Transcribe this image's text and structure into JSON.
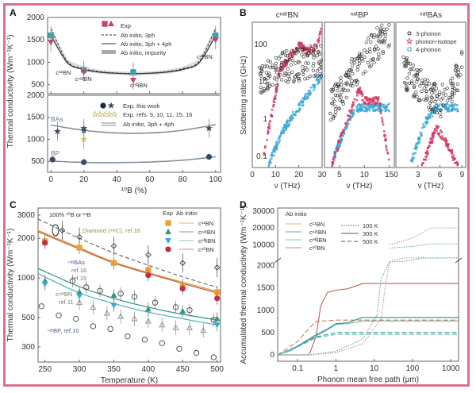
{
  "figure": {
    "frame_color": "#d9728a"
  },
  "chart_data": [
    {
      "panel": "A",
      "type": "line",
      "subplots": [
        {
          "name": "BN",
          "ylim": [
            300,
            2000
          ],
          "yticks": [
            500,
            1000,
            1500,
            2000
          ],
          "x": [
            0,
            10,
            20,
            30,
            40,
            50,
            60,
            70,
            80,
            90,
            100
          ],
          "series": [
            {
              "name": "Ab initio, 3ph",
              "style": "dashed",
              "values": [
                1750,
                1020,
                860,
                790,
                760,
                750,
                760,
                790,
                860,
                1020,
                1750
              ]
            },
            {
              "name": "Ab initio, 3ph + 4ph",
              "style": "solid",
              "values": [
                1600,
                990,
                840,
                780,
                755,
                745,
                755,
                780,
                840,
                990,
                1600
              ]
            }
          ],
          "exp_points": [
            {
              "x": 0,
              "y": 1600,
              "label": "c11BN"
            },
            {
              "x": 0,
              "y": 1450
            },
            {
              "x": 20,
              "y": 830,
              "label": "cnatBN"
            },
            {
              "x": 20,
              "y": 780
            },
            {
              "x": 50,
              "y": 780,
              "label": "ceqBN"
            },
            {
              "x": 50,
              "y": 600
            },
            {
              "x": 100,
              "y": 1600,
              "label": "c10BN"
            },
            {
              "x": 100,
              "y": 1500
            }
          ],
          "annotations": [
            "c¹¹BN",
            "cⁿᵃᵗBN",
            "cᵉᑫBN",
            "c¹⁰BN"
          ],
          "legend": [
            "Exp",
            "Ab initio, 3ph",
            "Ab initio, 3ph + 4ph",
            "Ab initio, impurity"
          ]
        },
        {
          "name": "BAs/BP",
          "ylim": [
            250,
            2000
          ],
          "yticks": [
            500,
            1000,
            1500,
            2000
          ],
          "xlim": [
            0,
            100
          ],
          "xticks": [
            0,
            20,
            40,
            60,
            80,
            100
          ],
          "xlabel": "¹⁰B (%)",
          "series": [
            {
              "name": "BAs ab initio",
              "x": [
                0,
                20,
                40,
                60,
                80,
                100
              ],
              "values": [
                1320,
                1200,
                1140,
                1140,
                1200,
                1330
              ]
            },
            {
              "name": "BP ab initio",
              "x": [
                0,
                20,
                40,
                60,
                80,
                100
              ],
              "values": [
                500,
                470,
                465,
                480,
                520,
                600
              ]
            }
          ],
          "exp_points": [
            {
              "series": "BAs",
              "x": 4,
              "y": 1180
            },
            {
              "series": "BAs",
              "x": 20,
              "y": 1250
            },
            {
              "series": "BAs",
              "x": 20,
              "y": 1200
            },
            {
              "series": "BAs",
              "x": 20,
              "y": 1000,
              "ref": true
            },
            {
              "series": "BAs",
              "x": 96,
              "y": 1250
            },
            {
              "series": "BP",
              "x": 1,
              "y": 540
            },
            {
              "series": "BP",
              "x": 20,
              "y": 480
            },
            {
              "series": "BP",
              "x": 96,
              "y": 600
            }
          ],
          "annotations": [
            "BAs",
            "BP"
          ],
          "legend": [
            "Exp. this work",
            "Exp. refs. 9, 10, 11, 15, 16",
            "Ab initio, 3ph + 4ph"
          ]
        }
      ],
      "ylabel": "Thermal conductivity (Wm⁻¹K⁻¹)"
    },
    {
      "panel": "B",
      "type": "scatter",
      "ylabel": "Scattering rates (GHz)",
      "yscale": "log",
      "ylim": [
        0.05,
        400
      ],
      "yticks": [
        "0.1",
        "1",
        "10",
        "100"
      ],
      "legend": [
        "3-phonon",
        "phonon-isotope",
        "4-phonon"
      ],
      "subplots": [
        {
          "title": "cⁿᵃᵗBN",
          "xlim": [
            0,
            30
          ],
          "xticks": [
            0,
            10,
            20,
            30
          ],
          "xlabel": "ν (THz)"
        },
        {
          "title": "ⁿᵃᵗBP",
          "xlim": [
            2,
            16
          ],
          "xticks": [
            5,
            10,
            15
          ],
          "xlabel": "ν (THz)"
        },
        {
          "title": "ⁿᵃᵗBAs",
          "xlim": [
            0,
            9.5
          ],
          "xticks": [
            0,
            3,
            6,
            9
          ],
          "xlabel": "ν (THz)"
        }
      ]
    },
    {
      "panel": "C",
      "type": "line",
      "xlabel": "Temperature (K)",
      "ylabel": "Thermal conductivity (Wm⁻¹K⁻¹)",
      "yscale": "log",
      "xlim": [
        240,
        505
      ],
      "ylim": [
        230,
        3400
      ],
      "xticks": [
        250,
        300,
        350,
        400,
        450,
        500
      ],
      "yticks": [
        300,
        500,
        1000,
        2000,
        3000
      ],
      "x": [
        240,
        300,
        350,
        400,
        450,
        500
      ],
      "series": [
        {
          "name": "c¹¹BN",
          "color": "#e8963a",
          "values": [
            2300,
            1700,
            1320,
            1100,
            930,
            790
          ]
        },
        {
          "name": "c¹⁰BN",
          "color": "#b5523b",
          "values": [
            2250,
            1660,
            1300,
            1080,
            910,
            770
          ]
        },
        {
          "name": "cⁿᵃᵗBN",
          "color": "#2f8e86",
          "values": [
            1180,
            860,
            700,
            600,
            530,
            480
          ]
        },
        {
          "name": "cᵉᑫBN",
          "color": "#4ab0b8",
          "values": [
            1080,
            770,
            640,
            550,
            490,
            440
          ]
        },
        {
          "name": "Diamond",
          "color": "#555555",
          "style": "dashed",
          "values": [
            2800,
            2000,
            1550,
            1250,
            1020,
            850
          ]
        }
      ],
      "exp_points": {
        "c11BN": [
          [
            250,
            1900
          ],
          [
            300,
            1700
          ],
          [
            350,
            1300
          ],
          [
            400,
            1150
          ],
          [
            450,
            880
          ],
          [
            500,
            780
          ]
        ],
        "cnatBN": [
          [
            250,
            950
          ],
          [
            300,
            780
          ],
          [
            350,
            740
          ],
          [
            400,
            580
          ],
          [
            450,
            560
          ],
          [
            500,
            490
          ]
        ],
        "ceqBN": [
          [
            250,
            900
          ],
          [
            300,
            730
          ],
          [
            350,
            620
          ],
          [
            500,
            440
          ]
        ],
        "c10BN": [
          [
            250,
            1850
          ],
          [
            400,
            1050
          ],
          [
            450,
            830
          ],
          [
            500,
            700
          ]
        ],
        "diamond_ref": [
          [
            275,
            2300
          ],
          [
            300,
            2050
          ],
          [
            350,
            1750
          ],
          [
            400,
            1500
          ],
          [
            450,
            1300
          ],
          [
            500,
            1200
          ]
        ],
        "BP_ref": [
          [
            245,
            610
          ],
          [
            270,
            520
          ],
          [
            295,
            490
          ],
          [
            320,
            430
          ],
          [
            345,
            410
          ],
          [
            370,
            360
          ],
          [
            395,
            340
          ],
          [
            420,
            320
          ],
          [
            445,
            290
          ],
          [
            470,
            270
          ],
          [
            495,
            250
          ]
        ]
      },
      "annotations": [
        "100% ¹⁰B or ¹¹B",
        "Diamond (ⁿᵃᵗC), ref.16",
        "ⁿᵃᵗBAs",
        "ref.16",
        "ref.15",
        "cⁿᵃᵗBN",
        "ref.11",
        "ⁿᵃᵗBP, ref.10"
      ],
      "legend": {
        "headers": [
          "Exp",
          "Ab initio"
        ],
        "entries": [
          "c¹¹BN",
          "cⁿᵃᵗBN",
          "cᵉᑫBN",
          "c¹⁰BN"
        ]
      }
    },
    {
      "panel": "D",
      "type": "line",
      "xlabel": "Phonon mean free path (μm)",
      "ylabel": "Accumulated thermal conductivity (Wm⁻¹K⁻¹)",
      "xscale": "log",
      "xlim": [
        0.03,
        1600
      ],
      "xticks": [
        "0.1",
        "1",
        "10",
        "100",
        "1000"
      ],
      "yticks_lower": [
        0,
        500,
        1000,
        1500,
        2000
      ],
      "yticks_upper": [
        10000,
        20000,
        30000
      ],
      "legend": {
        "title": "Ab initio",
        "materials": [
          "c¹¹BN",
          "cⁿᵃᵗBN",
          "cᵉᑫBN",
          "c¹⁰BN"
        ],
        "temperatures": [
          "100 K",
          "300 K",
          "500 K"
        ]
      },
      "series": [
        {
          "name": "c¹¹BN 300 K",
          "color": "#c0605a",
          "x": [
            0.03,
            0.2,
            0.3,
            0.4,
            0.6,
            1,
            2,
            5,
            1600
          ],
          "values": [
            0,
            0,
            400,
            1100,
            1400,
            1450,
            1480,
            1600,
            1600
          ]
        },
        {
          "name": "cⁿᵃᵗBN 300 K",
          "color": "#2f8e86",
          "x": [
            0.03,
            0.06,
            0.1,
            0.3,
            0.6,
            1,
            2,
            5,
            1600
          ],
          "values": [
            0,
            100,
            200,
            450,
            580,
            700,
            720,
            840,
            840
          ]
        },
        {
          "name": "cᵉᑫBN 300 K",
          "color": "#6bbfc0",
          "x": [
            0.03,
            0.06,
            0.1,
            0.3,
            0.6,
            1,
            2,
            5,
            1600
          ],
          "values": [
            0,
            80,
            180,
            420,
            560,
            680,
            700,
            760,
            760
          ]
        },
        {
          "name": "c¹⁰BN 500 K",
          "color": "#c08060",
          "style": "dashed",
          "x": [
            0.03,
            0.1,
            0.2,
            0.3,
            1,
            1600
          ],
          "values": [
            0,
            300,
            600,
            750,
            780,
            780
          ]
        },
        {
          "name": "cⁿᵃᵗBN 500 K",
          "color": "#2f8e86",
          "style": "dashed",
          "x": [
            0.03,
            0.1,
            0.3,
            1,
            1600
          ],
          "values": [
            0,
            200,
            400,
            500,
            500
          ]
        },
        {
          "name": "cᵉᑫBN 500 K",
          "color": "#6bbfc0",
          "style": "dashed",
          "x": [
            0.03,
            0.1,
            0.3,
            1,
            1600
          ],
          "values": [
            0,
            180,
            380,
            460,
            460
          ]
        },
        {
          "name": "c¹¹BN 100 K",
          "color": "#d08a8a",
          "style": "dotted",
          "x": [
            0.03,
            0.2,
            1,
            5,
            15,
            20,
            25,
            60,
            200,
            1600
          ],
          "values": [
            0,
            0,
            50,
            250,
            800,
            1600,
            2100,
            2150,
            2200,
            2200
          ]
        },
        {
          "name": "cⁿᵃᵗBN 100 K",
          "color": "#5aa8a0",
          "style": "dotted",
          "x": [
            0.03,
            0.2,
            1,
            5,
            12,
            15,
            25,
            60,
            200,
            1600
          ],
          "values": [
            0,
            0,
            80,
            350,
            900,
            1700,
            2080,
            2100,
            2120,
            2120
          ]
        }
      ]
    }
  ]
}
